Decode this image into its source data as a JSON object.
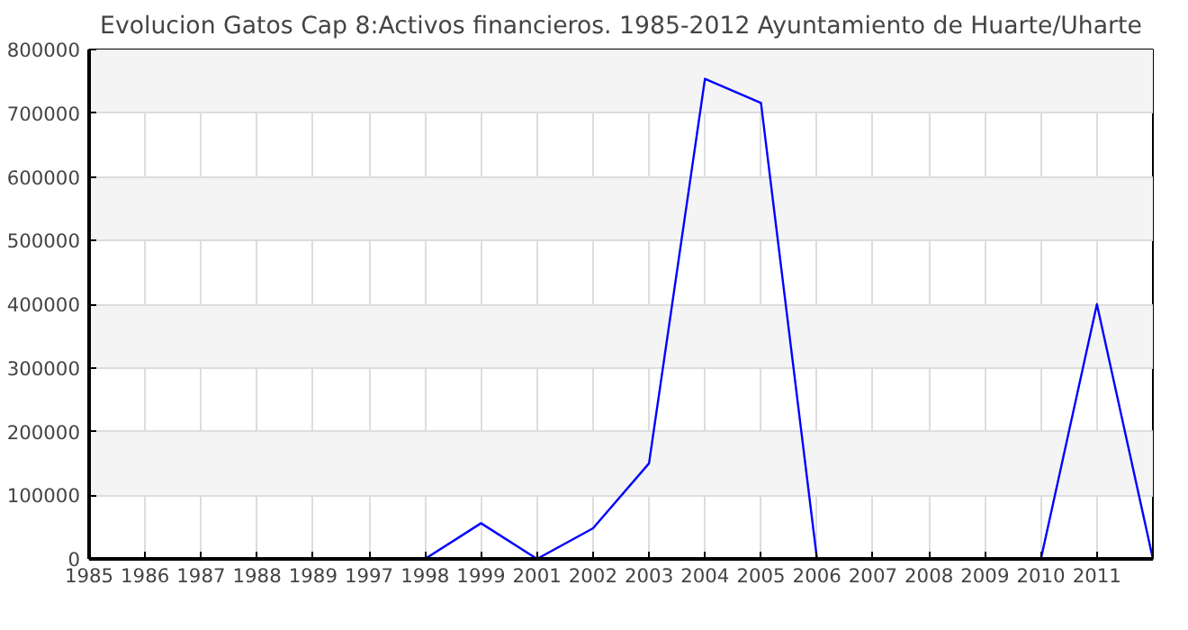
{
  "chart_data": {
    "type": "line",
    "title": "Evolucion Gatos Cap 8:Activos financieros. 1985-2012 Ayuntamiento de Huarte/Uharte",
    "categories": [
      "1985",
      "1986",
      "1987",
      "1988",
      "1989",
      "1997",
      "1998",
      "1999",
      "2001",
      "2002",
      "2003",
      "2004",
      "2005",
      "2006",
      "2007",
      "2008",
      "2009",
      "2010",
      "2011",
      null
    ],
    "series": [
      {
        "color": "#0000ff",
        "values": [
          null,
          null,
          null,
          null,
          null,
          null,
          0,
          56000,
          0,
          48000,
          150000,
          754000,
          716000,
          0,
          null,
          null,
          null,
          0,
          400000,
          0
        ]
      }
    ],
    "ylim": [
      0,
      800000
    ],
    "yticks": [
      0,
      100000,
      200000,
      300000,
      400000,
      500000,
      600000,
      700000,
      800000
    ],
    "grid": true,
    "marker": "none",
    "line_style": "solid"
  }
}
